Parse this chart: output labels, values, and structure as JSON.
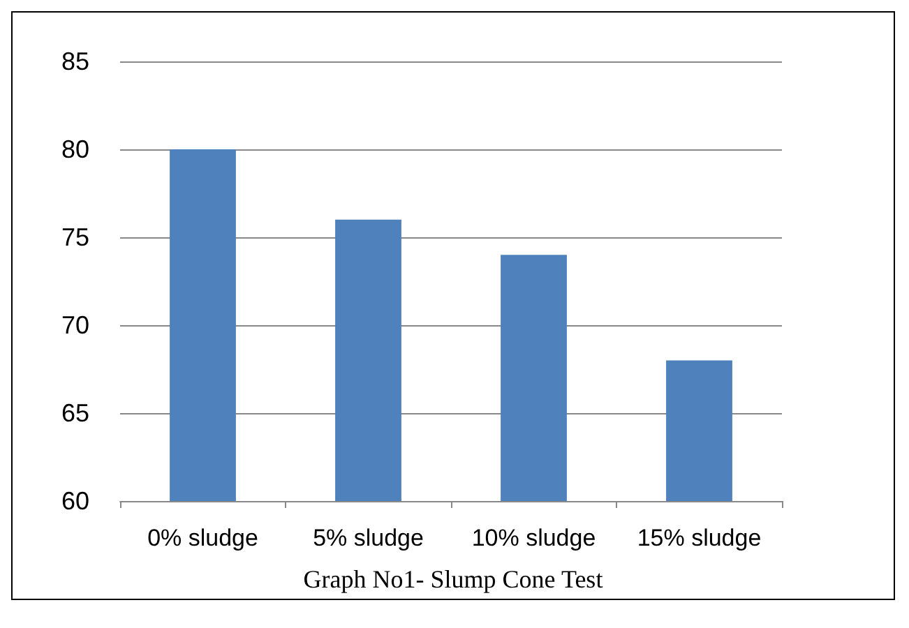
{
  "chart_data": {
    "type": "bar",
    "title": "Graph No1- Slump Cone Test",
    "categories": [
      "0% sludge",
      "5% sludge",
      "10% sludge",
      "15% sludge"
    ],
    "values": [
      80,
      76,
      74,
      68
    ],
    "color": "#4f81bd",
    "ylim": [
      60,
      85
    ],
    "yticks": [
      60,
      65,
      70,
      75,
      80,
      85
    ],
    "grid": "y"
  }
}
